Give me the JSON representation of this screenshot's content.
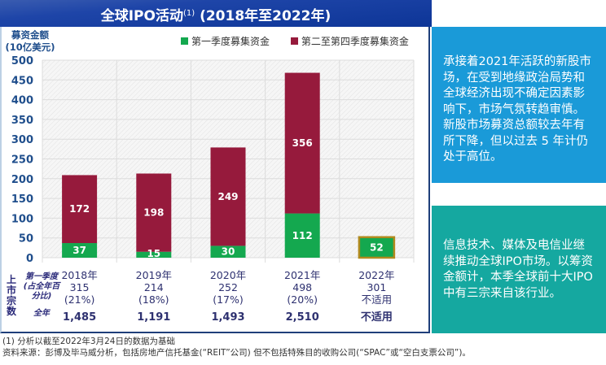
{
  "header": {
    "title": "全球IPO活动",
    "title_sup": "(1)",
    "title_suffix": " (2018年至2022年)"
  },
  "colors": {
    "header": "#0d3597",
    "q1": "#14a84f",
    "q2_q4": "#961a3c",
    "highlight_border": "#b08a1e",
    "axis_text": "#1f4e8c",
    "box1": "#1a9ad8",
    "box2": "#15a8a0"
  },
  "chart_data": {
    "type": "bar",
    "stacked": true,
    "title": "全球IPO活动(1) (2018年至2022年)",
    "ylabel": "募资金额 (10亿美元)",
    "ylabel_lines": [
      "募资金额",
      "(10亿美元)"
    ],
    "ylim": [
      0,
      500
    ],
    "yticks": [
      0,
      50,
      100,
      150,
      200,
      250,
      300,
      350,
      400,
      450,
      500
    ],
    "grid": true,
    "legend_position": "top-center",
    "categories": [
      "2018年",
      "2019年",
      "2020年",
      "2021年",
      "2022年"
    ],
    "series": [
      {
        "name": "第一季度募集资金",
        "color": "#14a84f",
        "values": [
          37,
          15,
          30,
          112,
          52
        ]
      },
      {
        "name": "第二至第四季度募集资金",
        "color": "#961a3c",
        "values": [
          172,
          198,
          249,
          356,
          null
        ]
      }
    ],
    "annotations": [
      "2022年 bar highlighted (Q1 only)"
    ]
  },
  "table": {
    "side_label": "上市宗数",
    "row_labels": [
      "第一季度 (占全年百分比)",
      "全年"
    ],
    "row_label_lines": [
      "第一季度",
      "(占全年百",
      "分比)"
    ],
    "row_total_label": "全年",
    "columns": [
      {
        "year": "2018年",
        "q1_count": "315",
        "q1_pct": "(21%)",
        "total": "1,485"
      },
      {
        "year": "2019年",
        "q1_count": "214",
        "q1_pct": "(18%)",
        "total": "1,191"
      },
      {
        "year": "2020年",
        "q1_count": "252",
        "q1_pct": "(17%)",
        "total": "1,493"
      },
      {
        "year": "2021年",
        "q1_count": "498",
        "q1_pct": "(20%)",
        "total": "2,510"
      },
      {
        "year": "2022年",
        "q1_count": "301",
        "q1_pct": "不适用",
        "total": "不适用"
      }
    ]
  },
  "side_boxes": [
    {
      "text": "承接着2021年活跃的新股市场，在受到地缘政治局势和全球经济出现不确定因素影响下，市场气氛转趋审慎。新股市场募资总额较去年有所下降，但以过去 5 年计仍处于高位。"
    },
    {
      "text": "信息技术、媒体及电信业继续推动全球IPO市场。以筹资金额计，本季全球前十大IPO中有三宗来自该行业。"
    }
  ],
  "footnotes": [
    "(1) 分析以截至2022年3月24日的数据为基础",
    "资料来源：彭博及毕马威分析，包括房地产信托基金(“REIT”公司) 但不包括特殊目的收购公司(“SPAC”或“空白支票公司”)。"
  ]
}
